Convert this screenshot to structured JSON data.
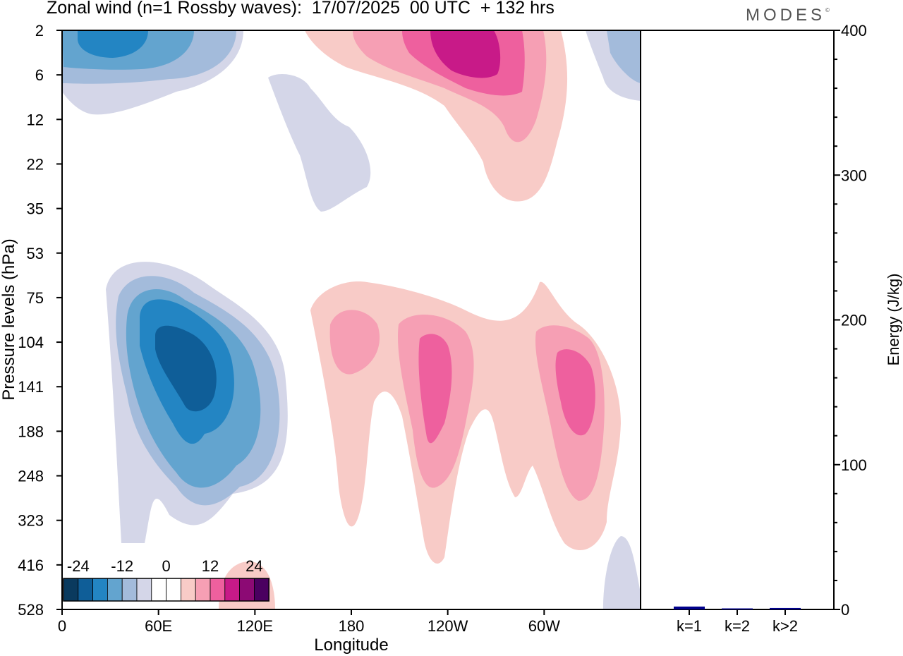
{
  "title": "Zonal wind (n=1 Rossby waves):  17/07/2025  00 UTC  + 132 hrs",
  "brand": "MODES",
  "brand_mark": "©",
  "chart_data": [
    {
      "type": "contour",
      "title": "Zonal wind (n=1 Rossby waves):  17/07/2025  00 UTC  + 132 hrs",
      "xlabel": "Longitude",
      "ylabel": "Pressure levels (hPa)",
      "x_ticks": [
        "0",
        "60E",
        "120E",
        "180",
        "120W",
        "60W"
      ],
      "x_tick_degrees": [
        0,
        60,
        120,
        180,
        240,
        300
      ],
      "xlim_degrees": [
        0,
        360
      ],
      "y_ticks": [
        "2",
        "6",
        "12",
        "22",
        "35",
        "53",
        "75",
        "104",
        "141",
        "188",
        "248",
        "323",
        "416",
        "528"
      ],
      "color_scale": {
        "labels": [
          "-24",
          "-12",
          "0",
          "12",
          "24"
        ],
        "colors": [
          "#0a3a5e",
          "#0f5e98",
          "#2385c3",
          "#63a4cf",
          "#a3bbdb",
          "#d4d6e8",
          "#ffffff",
          "#ffffff",
          "#f8cbc7",
          "#f69fb4",
          "#ee609e",
          "#c81a88",
          "#8c0a74",
          "#4a0060"
        ]
      },
      "features": [
        {
          "sign": "negative",
          "level": -24,
          "lon_center_deg": 78,
          "pressure_center_hPa": 120
        },
        {
          "sign": "negative",
          "level": -6,
          "lon_center_deg": 30,
          "pressure_center_hPa": 4
        },
        {
          "sign": "positive",
          "level": 18,
          "lon_center_deg": 250,
          "pressure_center_hPa": 4
        },
        {
          "sign": "positive",
          "level": 12,
          "lon_center_deg": 230,
          "pressure_center_hPa": 150
        },
        {
          "sign": "positive",
          "level": 12,
          "lon_center_deg": 322,
          "pressure_center_hPa": 145
        }
      ]
    },
    {
      "type": "bar",
      "ylabel": "Energy (J/kg)",
      "ylim": [
        0,
        400
      ],
      "y_ticks": [
        "0",
        "100",
        "200",
        "300",
        "400"
      ],
      "categories": [
        "k=1",
        "k=2",
        "k>2"
      ],
      "values": [
        2,
        0.5,
        1
      ],
      "color": "#00008b"
    }
  ]
}
